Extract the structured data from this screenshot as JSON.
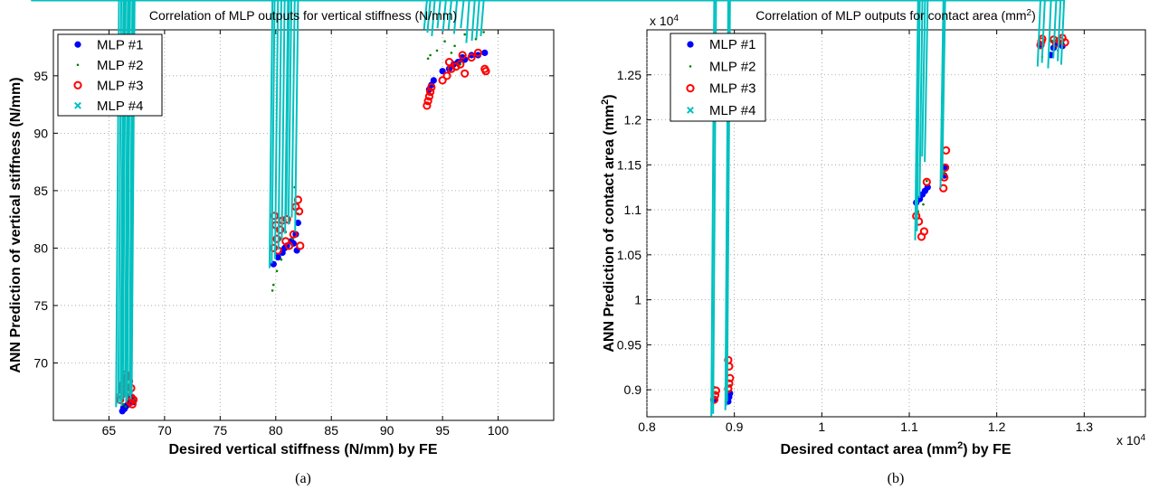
{
  "panels": [
    {
      "caption": "(a)",
      "chart_data": {
        "type": "scatter",
        "title": "Correlation of MLP outputs for vertical stiffness (N/mm)",
        "xlabel": "Desired vertical stiffness (N/mm) by FE",
        "ylabel": "ANN Prediction of vertical stiffness (N/mm)",
        "xlim": [
          60,
          105
        ],
        "ylim": [
          65,
          99
        ],
        "xticks": [
          65,
          70,
          75,
          80,
          85,
          90,
          95,
          100
        ],
        "yticks": [
          70,
          75,
          80,
          85,
          90,
          95
        ],
        "grid": true,
        "legend_position": "top-left",
        "series": [
          {
            "name": "MLP #1",
            "color": "#0000ff",
            "marker": "dot",
            "x": [
              66.2,
              66.4,
              66.6,
              66.8,
              67.0,
              67.2,
              66.5,
              66.9,
              67.1,
              66.3,
              79.8,
              80.2,
              80.6,
              81.0,
              81.4,
              81.8,
              82.0,
              81.6,
              80.8,
              81.9,
              93.8,
              94.0,
              94.2,
              95.0,
              95.6,
              96.0,
              96.4,
              97.0,
              97.6,
              98.2,
              98.8,
              96.8
            ],
            "y": [
              65.8,
              66.0,
              66.3,
              66.5,
              66.8,
              66.6,
              66.2,
              66.9,
              67.0,
              66.1,
              78.6,
              79.2,
              79.6,
              80.2,
              80.6,
              81.2,
              82.2,
              80.4,
              80.0,
              79.8,
              93.8,
              94.2,
              94.6,
              95.4,
              95.6,
              96.0,
              96.2,
              96.4,
              96.8,
              96.8,
              97.0,
              96.6
            ]
          },
          {
            "name": "MLP #2",
            "color": "#008000",
            "marker": "point",
            "x": [
              66.3,
              66.7,
              67.0,
              67.3,
              66.5,
              79.7,
              79.8,
              80.1,
              80.5,
              81.2,
              81.7,
              82.0,
              81.5,
              80.9,
              93.7,
              93.9,
              94.5,
              95.2,
              96.1,
              97.0,
              98.0,
              98.7,
              96.6,
              95.8
            ],
            "y": [
              66.4,
              67.0,
              67.6,
              66.8,
              66.2,
              76.3,
              76.8,
              78.0,
              79.0,
              82.2,
              85.3,
              83.0,
              80.8,
              81.4,
              96.5,
              96.8,
              97.2,
              98.0,
              97.6,
              98.6,
              98.2,
              98.8,
              96.0,
              97.0
            ]
          },
          {
            "name": "MLP #3",
            "color": "#ff0000",
            "marker": "circle",
            "x": [
              66.0,
              66.1,
              66.2,
              66.3,
              66.4,
              66.5,
              66.6,
              66.7,
              66.8,
              66.9,
              67.0,
              67.1,
              67.2,
              66.2,
              66.6,
              67.0,
              79.8,
              79.9,
              80.0,
              80.1,
              80.4,
              80.6,
              80.9,
              81.2,
              81.6,
              82.0,
              82.1,
              82.2,
              80.2,
              81.0,
              81.8,
              93.6,
              93.7,
              93.8,
              93.9,
              94.0,
              95.0,
              95.4,
              95.8,
              96.2,
              96.6,
              97.0,
              97.6,
              98.2,
              98.8,
              98.9,
              96.8,
              95.6
            ],
            "y": [
              66.8,
              67.2,
              67.8,
              68.2,
              68.6,
              69.0,
              68.8,
              67.6,
              68.4,
              66.6,
              67.0,
              66.4,
              66.8,
              68.0,
              67.4,
              67.8,
              80.0,
              82.8,
              82.0,
              80.8,
              81.6,
              82.4,
              80.6,
              80.2,
              81.2,
              84.2,
              83.2,
              80.2,
              79.8,
              82.5,
              83.6,
              92.4,
              92.8,
              93.2,
              93.6,
              94.0,
              94.6,
              95.0,
              95.6,
              95.8,
              96.0,
              95.2,
              96.6,
              97.0,
              95.6,
              95.4,
              96.8,
              96.2
            ]
          },
          {
            "name": "MLP #4",
            "color": "#00c0c0",
            "marker": "x",
            "x": [
              65.9,
              66.1,
              66.3,
              66.5,
              66.7,
              66.9,
              67.1,
              67.3,
              66.4,
              66.8,
              67.2,
              79.7,
              79.9,
              80.2,
              80.5,
              80.8,
              81.1,
              81.4,
              81.7,
              82.0,
              81.2,
              93.6,
              93.9,
              94.3,
              94.8,
              95.3,
              95.8,
              96.3,
              96.9,
              97.4,
              97.9,
              98.3,
              98.7
            ],
            "y": [
              65.9,
              66.2,
              66.4,
              66.6,
              66.8,
              66.5,
              66.9,
              67.0,
              66.0,
              66.3,
              66.6,
              78.0,
              78.4,
              78.8,
              79.6,
              80.4,
              81.0,
              81.8,
              82.4,
              81.2,
              82.6,
              98.8,
              98.5,
              98.2,
              98.9,
              98.6,
              98.8,
              98.4,
              98.9,
              97.6,
              97.8,
              98.0,
              98.2
            ]
          }
        ]
      }
    },
    {
      "caption": "(b)",
      "chart_data": {
        "type": "scatter",
        "title": "Correlation of MLP outputs for contact area (mm2)",
        "xlabel": "Desired contact area (mm2) by FE",
        "ylabel": "ANN Prediction of contact area (mm2)",
        "x_multiplier": "x 10^4",
        "y_multiplier": "x 10^4",
        "xlim": [
          0.8,
          1.37
        ],
        "ylim": [
          0.87,
          1.3
        ],
        "xticks": [
          0.8,
          0.9,
          1,
          1.1,
          1.2,
          1.3
        ],
        "yticks": [
          0.9,
          0.95,
          1,
          1.05,
          1.1,
          1.15,
          1.2,
          1.25
        ],
        "grid": true,
        "legend_position": "top-left",
        "series": [
          {
            "name": "MLP #1",
            "color": "#0000ff",
            "marker": "dot",
            "x": [
              0.878,
              0.893,
              0.894,
              0.895,
              1.108,
              1.112,
              1.115,
              1.118,
              1.121,
              1.14,
              1.141,
              1.25,
              1.262,
              1.265,
              1.27,
              1.275
            ],
            "y": [
              0.889,
              0.887,
              0.892,
              0.896,
              1.108,
              1.112,
              1.117,
              1.121,
              1.125,
              1.138,
              1.146,
              1.283,
              1.272,
              1.28,
              1.285,
              1.282
            ]
          },
          {
            "name": "MLP #2",
            "color": "#008000",
            "marker": "point",
            "x": [
              0.877,
              0.893,
              0.895,
              1.11,
              1.116,
              1.12,
              1.14,
              1.252,
              1.263,
              1.27,
              1.276
            ],
            "y": [
              0.903,
              0.898,
              0.905,
              1.098,
              1.106,
              1.132,
              1.141,
              1.27,
              1.288,
              1.277,
              1.286
            ]
          },
          {
            "name": "MLP #3",
            "color": "#ff0000",
            "marker": "circle",
            "x": [
              0.877,
              0.878,
              0.879,
              0.893,
              0.894,
              0.895,
              0.894,
              0.893,
              1.108,
              1.111,
              1.114,
              1.117,
              1.12,
              1.139,
              1.14,
              1.141,
              1.142,
              1.25,
              1.251,
              1.252,
              1.265,
              1.268,
              1.272,
              1.275,
              1.278
            ],
            "y": [
              0.889,
              0.894,
              0.899,
              0.901,
              0.907,
              0.913,
              0.926,
              0.933,
              1.093,
              1.087,
              1.07,
              1.076,
              1.131,
              1.124,
              1.136,
              1.147,
              1.166,
              1.283,
              1.287,
              1.29,
              1.289,
              1.285,
              1.288,
              1.291,
              1.286
            ]
          },
          {
            "name": "MLP #4",
            "color": "#00c0c0",
            "marker": "x",
            "x": [
              0.877,
              0.879,
              0.893,
              0.894,
              0.895,
              1.11,
              1.112,
              1.115,
              1.118,
              1.121,
              1.139,
              1.141,
              1.25,
              1.255,
              1.262,
              1.268,
              1.273,
              1.277
            ],
            "y": [
              0.867,
              0.87,
              0.874,
              0.879,
              0.884,
              1.063,
              1.073,
              1.11,
              1.156,
              1.15,
              1.121,
              1.132,
              1.256,
              1.26,
              1.254,
              1.265,
              1.262,
              1.258
            ]
          }
        ]
      }
    }
  ]
}
